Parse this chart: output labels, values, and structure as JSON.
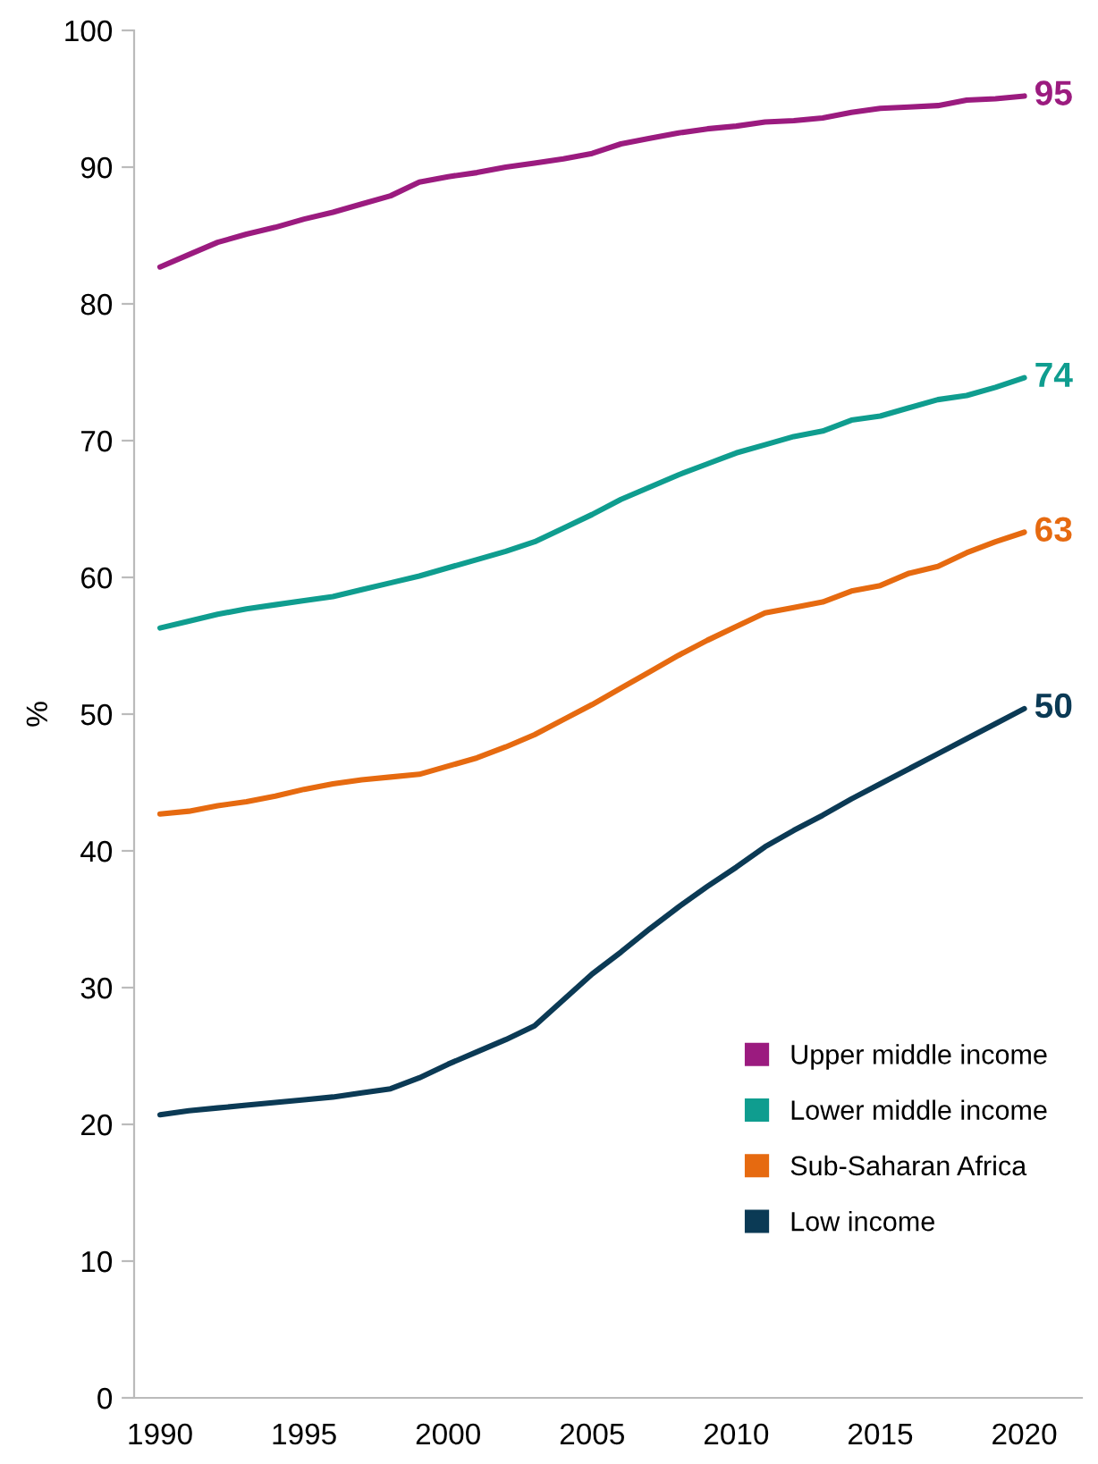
{
  "chart_data": {
    "type": "line",
    "ylabel": "%",
    "xlim": [
      1989.1,
      2022
    ],
    "ylim": [
      0,
      100
    ],
    "xticks": [
      1990,
      1995,
      2000,
      2005,
      2010,
      2015,
      2020
    ],
    "yticks": [
      0,
      10,
      20,
      30,
      40,
      50,
      60,
      70,
      80,
      90,
      100
    ],
    "x": [
      1990,
      1991,
      1992,
      1993,
      1994,
      1995,
      1996,
      1997,
      1998,
      1999,
      2000,
      2001,
      2002,
      2003,
      2004,
      2005,
      2006,
      2007,
      2008,
      2009,
      2010,
      2011,
      2012,
      2013,
      2014,
      2015,
      2016,
      2017,
      2018,
      2019,
      2020
    ],
    "series": [
      {
        "name": "Upper middle income",
        "color": "#9b1b7f",
        "values": [
          82.7,
          83.6,
          84.5,
          85.1,
          85.6,
          86.2,
          86.7,
          87.3,
          87.9,
          88.9,
          89.3,
          89.6,
          90.0,
          90.3,
          90.6,
          91.0,
          91.7,
          92.1,
          92.5,
          92.8,
          93.0,
          93.3,
          93.4,
          93.6,
          94.0,
          94.3,
          94.4,
          94.5,
          94.9,
          95.0,
          95.2
        ]
      },
      {
        "name": "Lower middle income",
        "color": "#0f9d8f",
        "values": [
          56.3,
          56.8,
          57.3,
          57.7,
          58.0,
          58.3,
          58.6,
          59.1,
          59.6,
          60.1,
          60.7,
          61.3,
          61.9,
          62.6,
          63.6,
          64.6,
          65.7,
          66.6,
          67.5,
          68.3,
          69.1,
          69.7,
          70.3,
          70.7,
          71.5,
          71.8,
          72.4,
          73.0,
          73.3,
          73.9,
          74.6
        ]
      },
      {
        "name": "Sub-Saharan Africa",
        "color": "#e66a10",
        "values": [
          42.7,
          42.9,
          43.3,
          43.6,
          44.0,
          44.5,
          44.9,
          45.2,
          45.4,
          45.6,
          46.2,
          46.8,
          47.6,
          48.5,
          49.6,
          50.7,
          51.9,
          53.1,
          54.3,
          55.4,
          56.4,
          57.4,
          57.8,
          58.2,
          59.0,
          59.4,
          60.3,
          60.8,
          61.8,
          62.6,
          63.3
        ]
      },
      {
        "name": "Low income",
        "color": "#0b3a55",
        "values": [
          20.7,
          21.0,
          21.2,
          21.4,
          21.6,
          21.8,
          22.0,
          22.3,
          22.6,
          23.4,
          24.4,
          25.3,
          26.2,
          27.2,
          29.1,
          31.0,
          32.6,
          34.3,
          35.9,
          37.4,
          38.8,
          40.3,
          41.5,
          42.6,
          43.8,
          44.9,
          46.0,
          47.1,
          48.2,
          49.3,
          50.4
        ]
      }
    ],
    "annotations": [
      "95",
      "74",
      "63",
      "50"
    ],
    "legend": "bottom right",
    "grid": false
  }
}
